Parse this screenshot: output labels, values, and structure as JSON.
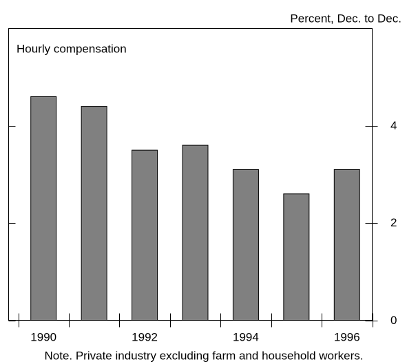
{
  "chart_data": {
    "type": "bar",
    "title": "Hourly compensation",
    "subtitle": "Percent, Dec. to Dec.",
    "note": "Note.  Private industry excluding farm and household workers.",
    "categories": [
      "1990",
      null,
      "1992",
      null,
      "1994",
      null,
      "1996"
    ],
    "values": [
      4.6,
      4.4,
      3.5,
      3.6,
      3.1,
      2.6,
      3.1
    ],
    "color": "#808080",
    "ylim": [
      0,
      6
    ],
    "yticks": [
      0,
      2,
      4
    ]
  }
}
